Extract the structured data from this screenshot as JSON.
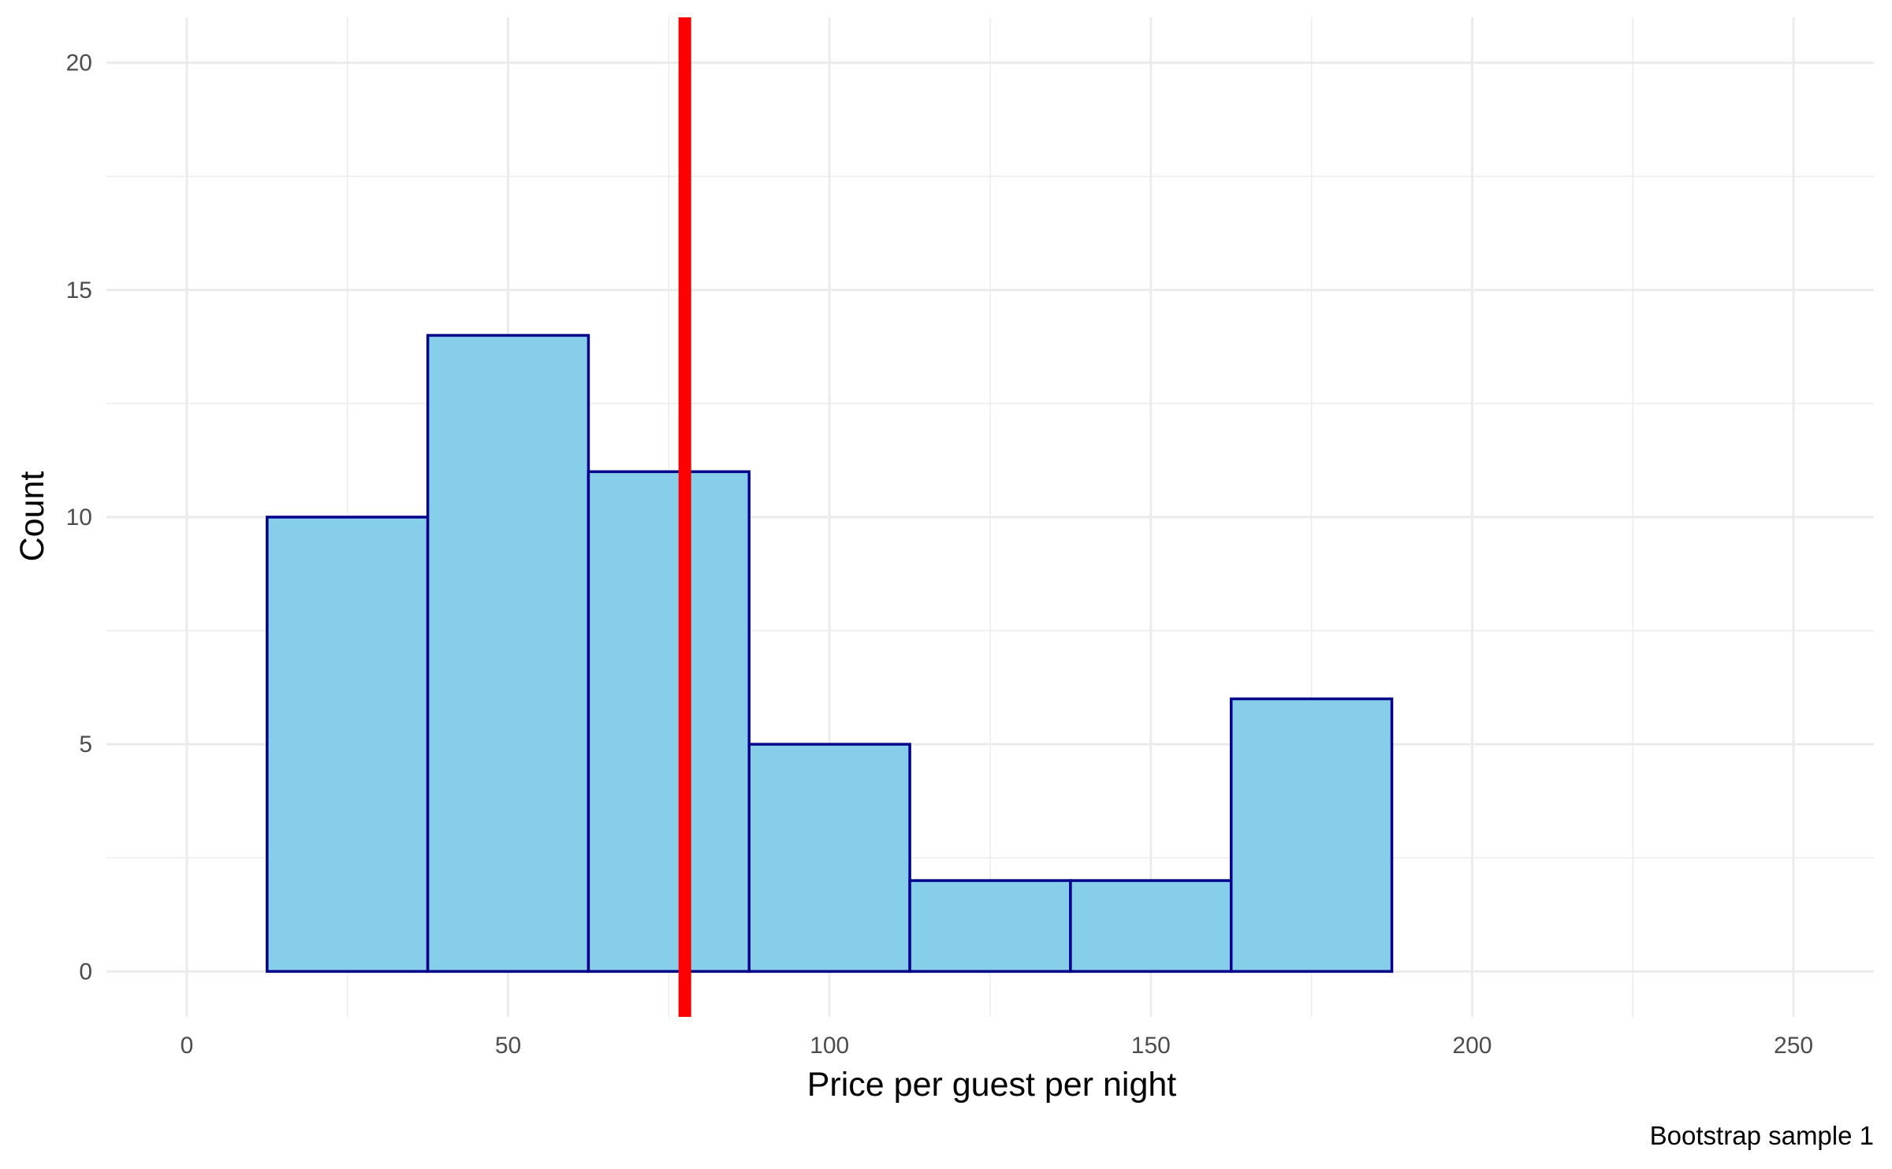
{
  "chart_data": {
    "type": "bar",
    "subtype": "histogram",
    "xlabel": "Price per guest per night",
    "ylabel": "Count",
    "caption": "Bootstrap sample 1",
    "xlim": [
      -12.5,
      262.5
    ],
    "ylim": [
      -1,
      21
    ],
    "x_ticks": [
      0,
      50,
      100,
      150,
      200,
      250
    ],
    "y_ticks": [
      0,
      5,
      10,
      15,
      20
    ],
    "x_minor_ticks": [
      25,
      75,
      125,
      175,
      225
    ],
    "y_minor_ticks": [
      2.5,
      7.5,
      12.5,
      17.5
    ],
    "grid": true,
    "bins": [
      {
        "start": 12.5,
        "end": 37.5,
        "count": 10
      },
      {
        "start": 37.5,
        "end": 62.5,
        "count": 14
      },
      {
        "start": 62.5,
        "end": 87.5,
        "count": 11
      },
      {
        "start": 87.5,
        "end": 112.5,
        "count": 5
      },
      {
        "start": 112.5,
        "end": 137.5,
        "count": 2
      },
      {
        "start": 137.5,
        "end": 162.5,
        "count": 2
      },
      {
        "start": 162.5,
        "end": 187.5,
        "count": 6
      },
      {
        "start": 187.5,
        "end": 212.5,
        "count": 0
      },
      {
        "start": 212.5,
        "end": 237.5,
        "count": 0
      }
    ],
    "vline": {
      "x": 77.5,
      "color": "#ff0000"
    },
    "bar_fill": "#87ceeb",
    "bar_outline": "#00008b",
    "grid_color": "#ebebeb"
  }
}
